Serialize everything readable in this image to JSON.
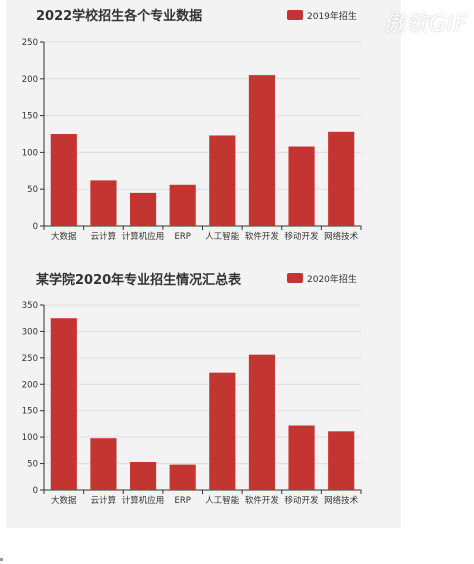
{
  "watermark": "傲软GIF",
  "colors": {
    "bar": "#c23531",
    "axis": "#333333",
    "grid": "#dddddd",
    "text": "#333333"
  },
  "chart_data": [
    {
      "type": "bar",
      "title": "2022学校招生各个专业数据",
      "legend": {
        "label": "2019年招生",
        "position": "top-right"
      },
      "categories": [
        "大数据",
        "云计算",
        "计算机应用",
        "ERP",
        "人工智能",
        "软件开发",
        "移动开发",
        "网络技术"
      ],
      "values": [
        125,
        62,
        45,
        56,
        123,
        205,
        108,
        128
      ],
      "ylim": [
        0,
        250
      ],
      "yticks": [
        0,
        50,
        100,
        150,
        200,
        250
      ],
      "grid": true
    },
    {
      "type": "bar",
      "title": "某学院2020年专业招生情况汇总表",
      "legend": {
        "label": "2020年招生",
        "position": "top-right"
      },
      "categories": [
        "大数据",
        "云计算",
        "计算机应用",
        "ERP",
        "人工智能",
        "软件开发",
        "移动开发",
        "网络技术"
      ],
      "values": [
        325,
        98,
        53,
        48,
        222,
        256,
        122,
        111
      ],
      "ylim": [
        0,
        350
      ],
      "yticks": [
        0,
        50,
        100,
        150,
        200,
        250,
        300,
        350
      ],
      "grid": true
    }
  ]
}
